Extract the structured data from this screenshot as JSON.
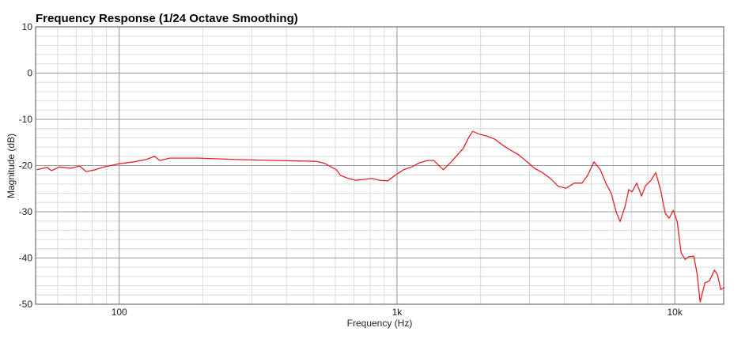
{
  "chart_data": {
    "type": "line",
    "title": "Frequency Response (1/24 Octave Smoothing)",
    "x_label": "Frequency (Hz)",
    "y_label": "Magnitude (dB)",
    "x_log": true,
    "grid": true,
    "minor_grid": true,
    "xlim": [
      50,
      15000
    ],
    "ylim": [
      -50,
      10
    ],
    "xticks": [
      100,
      {
        "value": 1000,
        "label": "1k"
      },
      {
        "value": 10000,
        "label": "10k"
      }
    ],
    "yticks": [
      -50,
      -40,
      -30,
      -20,
      -10,
      0,
      10
    ],
    "x": [
      50.5,
      55,
      57,
      61,
      67,
      72,
      76,
      82,
      87,
      100,
      113,
      125,
      134,
      140,
      152,
      192,
      266,
      370,
      513,
      548,
      605,
      625,
      668,
      713,
      761,
      813,
      868,
      927,
      990,
      1057,
      1129,
      1206,
      1288,
      1357,
      1421,
      1469,
      1568,
      1731,
      1824,
      1873,
      1974,
      2108,
      2251,
      2404,
      2567,
      2742,
      2928,
      3126,
      3338,
      3566,
      3807,
      4066,
      4342,
      4637,
      4856,
      5117,
      5394,
      5648,
      5913,
      6151,
      6356,
      6612,
      6832,
      7014,
      7297,
      7590,
      7843,
      8211,
      8542,
      8884,
      9243,
      9550,
      9870,
      10200,
      10540,
      10890,
      11260,
      11710,
      12020,
      12340,
      12840,
      13350,
      13890,
      14260,
      14640,
      15120
    ],
    "series": [
      {
        "name": "Magnitude",
        "color": "#e8202a",
        "values": [
          -20.9,
          -20.4,
          -21.1,
          -20.3,
          -20.6,
          -20.1,
          -21.3,
          -20.9,
          -20.4,
          -19.6,
          -19.2,
          -18.7,
          -18.0,
          -18.9,
          -18.4,
          -18.4,
          -18.7,
          -18.9,
          -19.1,
          -19.5,
          -20.9,
          -22.1,
          -22.8,
          -23.2,
          -23.0,
          -22.8,
          -23.2,
          -23.3,
          -22.0,
          -20.9,
          -20.3,
          -19.4,
          -18.9,
          -18.9,
          -20.1,
          -20.9,
          -19.2,
          -16.3,
          -13.6,
          -12.6,
          -13.2,
          -13.6,
          -14.3,
          -15.6,
          -16.7,
          -17.7,
          -19.1,
          -20.6,
          -21.5,
          -22.8,
          -24.5,
          -24.9,
          -23.8,
          -23.8,
          -22.1,
          -19.2,
          -20.9,
          -23.8,
          -26.1,
          -30.0,
          -32.1,
          -29.0,
          -25.2,
          -25.7,
          -23.8,
          -26.6,
          -24.4,
          -23.2,
          -21.5,
          -25.2,
          -30.3,
          -31.4,
          -29.7,
          -32.1,
          -38.9,
          -40.3,
          -39.7,
          -39.6,
          -43.2,
          -49.5,
          -45.4,
          -44.9,
          -42.6,
          -43.7,
          -46.8,
          -46.4
        ]
      }
    ]
  }
}
